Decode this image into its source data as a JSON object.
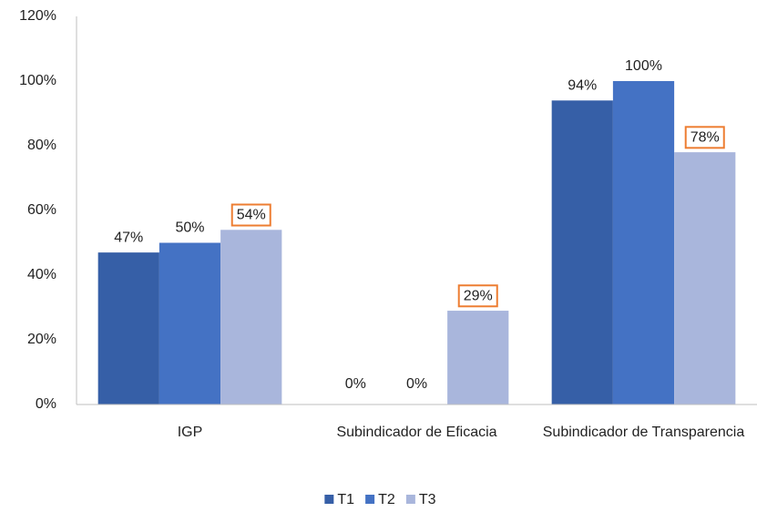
{
  "chart_data": {
    "type": "bar",
    "categories": [
      "IGP",
      "Subindicador de Eficacia",
      "Subindicador de Transparencia"
    ],
    "series": [
      {
        "name": "T1",
        "color": "#365fa7",
        "values": [
          47,
          0,
          94
        ],
        "value_labels": [
          "47%",
          "0%",
          "94%"
        ]
      },
      {
        "name": "T2",
        "color": "#4472c4",
        "values": [
          50,
          0,
          100
        ],
        "value_labels": [
          "50%",
          "0%",
          "100%"
        ]
      },
      {
        "name": "T3",
        "color": "#a9b6dc",
        "values": [
          54,
          29,
          78
        ],
        "value_labels": [
          "54%",
          "29%",
          "78%"
        ],
        "label_box_color": "#ed7d31"
      }
    ],
    "ylim": [
      0,
      120
    ],
    "yticks": [
      {
        "value": 0,
        "label": "0%"
      },
      {
        "value": 20,
        "label": "20%"
      },
      {
        "value": 40,
        "label": "40%"
      },
      {
        "value": 60,
        "label": "60%"
      },
      {
        "value": 80,
        "label": "80%"
      },
      {
        "value": 100,
        "label": "100%"
      },
      {
        "value": 120,
        "label": "120%"
      }
    ],
    "grid": false,
    "legend": "bottom"
  }
}
